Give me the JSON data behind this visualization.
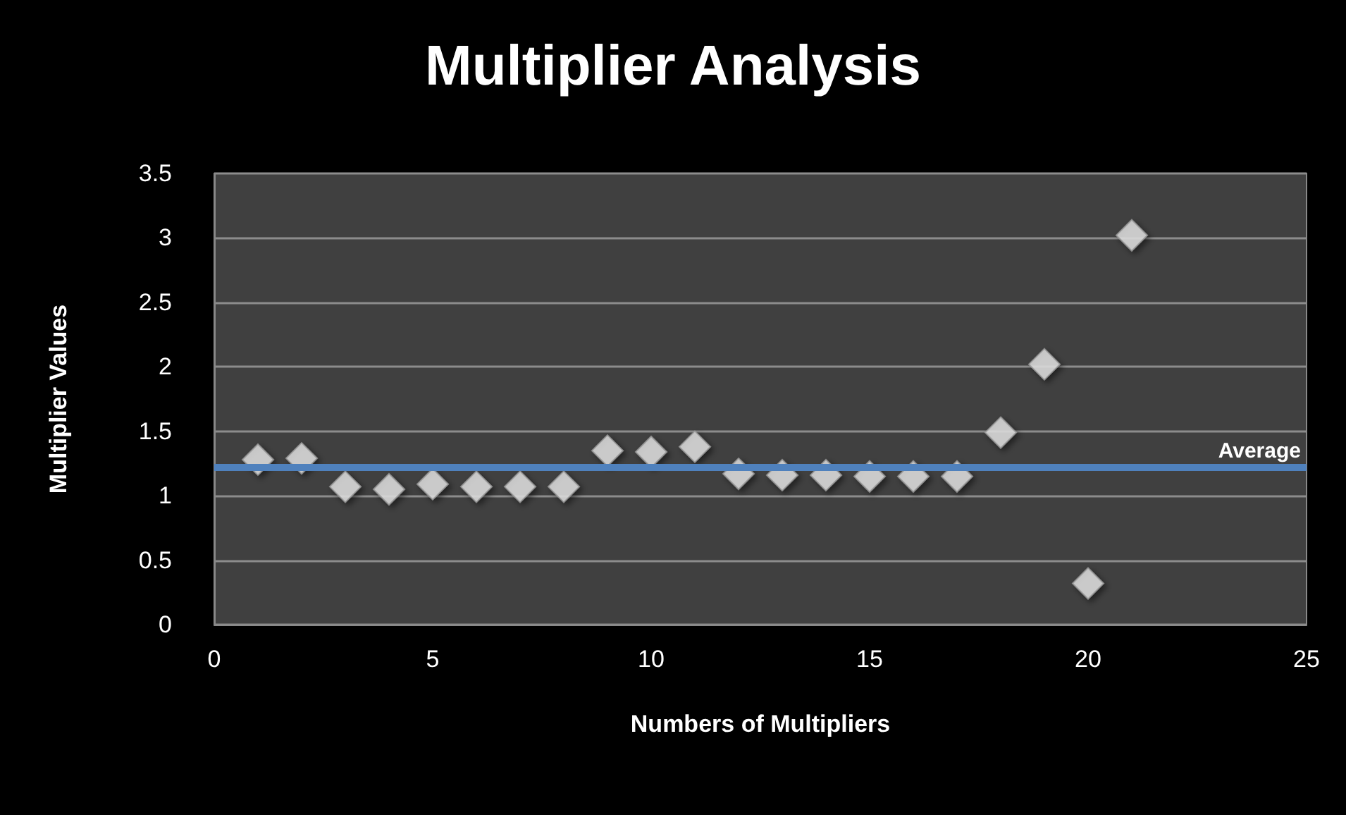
{
  "chart_data": {
    "type": "scatter",
    "title": "Multiplier Analysis",
    "xlabel": "Numbers of Multipliers",
    "ylabel": "Multiplier Values",
    "x": [
      1,
      2,
      3,
      4,
      5,
      6,
      7,
      8,
      9,
      10,
      11,
      12,
      13,
      14,
      15,
      16,
      17,
      18,
      19,
      20,
      21
    ],
    "series": [
      {
        "color": "#e6e6e6",
        "values": [
          1.28,
          1.29,
          1.07,
          1.05,
          1.09,
          1.07,
          1.07,
          1.07,
          1.35,
          1.34,
          1.38,
          1.17,
          1.16,
          1.16,
          1.15,
          1.15,
          1.15,
          1.49,
          2.02,
          0.32,
          3.02
        ]
      }
    ],
    "xlim": [
      0,
      25
    ],
    "xticks": [
      0,
      5,
      10,
      15,
      20,
      25
    ],
    "ylim": [
      0,
      3.5
    ],
    "yticks": [
      0,
      0.5,
      1,
      1.5,
      2,
      2.5,
      3,
      3.5
    ],
    "ref_lines": [
      {
        "axis": "y",
        "value": 1.22,
        "label": "Average",
        "color": "#4f81bd"
      }
    ],
    "grid": "y",
    "marker": "diamond"
  }
}
